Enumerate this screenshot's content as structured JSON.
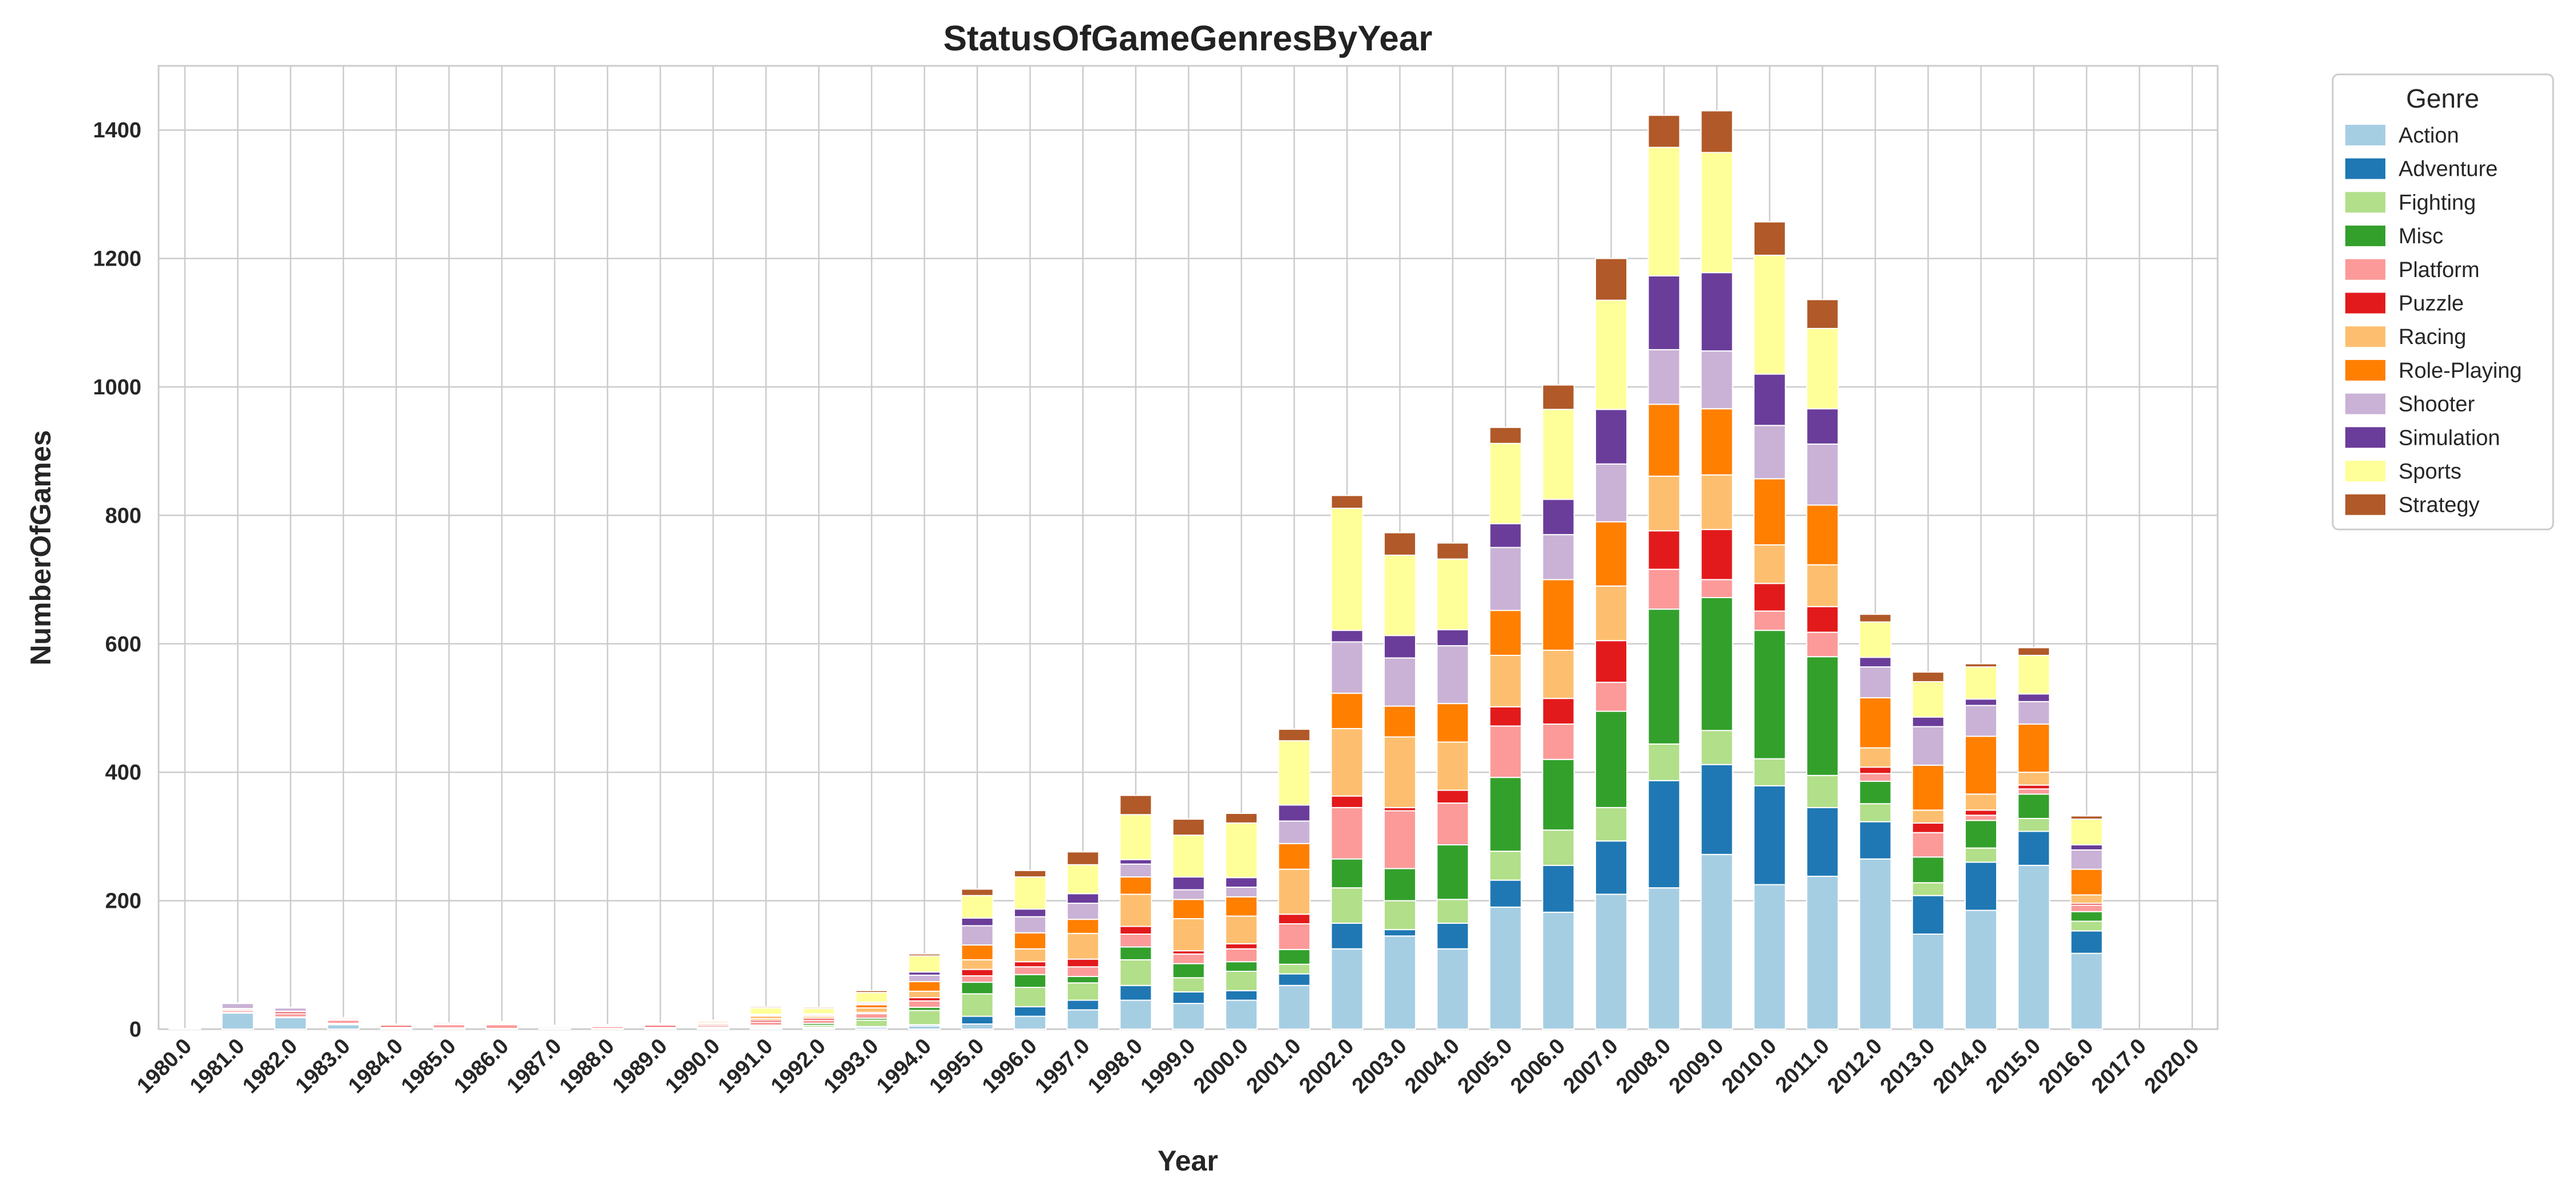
{
  "chart_data": {
    "type": "bar",
    "stacked": true,
    "title": "StatusOfGameGenresByYear",
    "xlabel": "Year",
    "ylabel": "NumberOfGames",
    "ylim": [
      0,
      1500
    ],
    "yticks": [
      0,
      200,
      400,
      600,
      800,
      1000,
      1200,
      1400
    ],
    "grid": true,
    "legend": {
      "title": "Genre",
      "placement": "outside-top-right"
    },
    "categories": [
      "1980.0",
      "1981.0",
      "1982.0",
      "1983.0",
      "1984.0",
      "1985.0",
      "1986.0",
      "1987.0",
      "1988.0",
      "1989.0",
      "1990.0",
      "1991.0",
      "1992.0",
      "1993.0",
      "1994.0",
      "1995.0",
      "1996.0",
      "1997.0",
      "1998.0",
      "1999.0",
      "2000.0",
      "2001.0",
      "2002.0",
      "2003.0",
      "2004.0",
      "2005.0",
      "2006.0",
      "2007.0",
      "2008.0",
      "2009.0",
      "2010.0",
      "2011.0",
      "2012.0",
      "2013.0",
      "2014.0",
      "2015.0",
      "2016.0",
      "2017.0",
      "2020.0"
    ],
    "series": [
      {
        "name": "Action",
        "color": "#a6cee3",
        "values": [
          0,
          25,
          18,
          7,
          1,
          2,
          1,
          1,
          1,
          1,
          1,
          2,
          2,
          3,
          5,
          8,
          20,
          30,
          45,
          40,
          45,
          68,
          125,
          145,
          125,
          190,
          182,
          210,
          220,
          272,
          225,
          238,
          265,
          148,
          185,
          255,
          118,
          0,
          0
        ]
      },
      {
        "name": "Adventure",
        "color": "#1f78b4",
        "values": [
          0,
          0,
          0,
          1,
          0,
          0,
          0,
          0,
          0,
          0,
          0,
          1,
          1,
          1,
          2,
          12,
          15,
          15,
          23,
          18,
          15,
          18,
          40,
          10,
          40,
          42,
          73,
          83,
          167,
          140,
          154,
          107,
          58,
          60,
          75,
          53,
          35,
          0,
          0
        ]
      },
      {
        "name": "Fighting",
        "color": "#b2df8a",
        "values": [
          0,
          0,
          0,
          0,
          0,
          0,
          0,
          0,
          0,
          0,
          1,
          2,
          3,
          10,
          22,
          35,
          30,
          27,
          40,
          22,
          30,
          15,
          55,
          45,
          37,
          45,
          55,
          52,
          57,
          53,
          42,
          50,
          28,
          20,
          22,
          20,
          15,
          0,
          0
        ]
      },
      {
        "name": "Misc",
        "color": "#33a02c",
        "values": [
          0,
          1,
          1,
          1,
          1,
          0,
          0,
          0,
          0,
          0,
          1,
          1,
          3,
          3,
          5,
          18,
          20,
          10,
          20,
          22,
          15,
          23,
          45,
          50,
          85,
          115,
          110,
          150,
          210,
          207,
          200,
          185,
          35,
          40,
          43,
          38,
          15,
          0,
          0
        ]
      },
      {
        "name": "Platform",
        "color": "#fb9a99",
        "values": [
          1,
          3,
          5,
          5,
          1,
          5,
          6,
          2,
          3,
          2,
          3,
          5,
          5,
          7,
          10,
          10,
          12,
          15,
          20,
          15,
          20,
          40,
          80,
          90,
          65,
          80,
          55,
          45,
          62,
          28,
          30,
          38,
          12,
          38,
          8,
          8,
          10,
          0,
          0
        ]
      },
      {
        "name": "Puzzle",
        "color": "#e31a1c",
        "values": [
          0,
          2,
          3,
          1,
          3,
          1,
          0,
          0,
          0,
          3,
          2,
          3,
          3,
          2,
          5,
          10,
          8,
          12,
          12,
          5,
          8,
          15,
          18,
          5,
          20,
          30,
          40,
          65,
          60,
          78,
          43,
          40,
          10,
          15,
          8,
          6,
          3,
          0,
          0
        ]
      },
      {
        "name": "Racing",
        "color": "#fdbf6f",
        "values": [
          0,
          1,
          1,
          1,
          0,
          0,
          1,
          0,
          1,
          0,
          2,
          3,
          3,
          7,
          10,
          15,
          20,
          40,
          50,
          50,
          43,
          70,
          105,
          110,
          75,
          80,
          75,
          85,
          85,
          85,
          60,
          65,
          30,
          20,
          25,
          20,
          13,
          0,
          0
        ]
      },
      {
        "name": "Role-Playing",
        "color": "#ff7f00",
        "values": [
          0,
          0,
          0,
          0,
          0,
          0,
          1,
          1,
          1,
          1,
          2,
          3,
          2,
          5,
          15,
          23,
          25,
          22,
          27,
          30,
          30,
          40,
          55,
          48,
          60,
          70,
          110,
          100,
          112,
          103,
          103,
          93,
          78,
          70,
          90,
          75,
          40,
          0,
          0
        ]
      },
      {
        "name": "Shooter",
        "color": "#cab2d6",
        "values": [
          0,
          8,
          5,
          2,
          1,
          2,
          1,
          1,
          0,
          1,
          1,
          2,
          1,
          2,
          10,
          30,
          25,
          25,
          20,
          15,
          15,
          35,
          80,
          75,
          90,
          98,
          70,
          90,
          85,
          90,
          83,
          95,
          48,
          60,
          48,
          35,
          30,
          0,
          0
        ]
      },
      {
        "name": "Simulation",
        "color": "#6a3d9a",
        "values": [
          0,
          0,
          0,
          0,
          0,
          0,
          0,
          0,
          0,
          0,
          0,
          1,
          1,
          2,
          5,
          12,
          12,
          15,
          7,
          20,
          15,
          25,
          18,
          35,
          25,
          37,
          55,
          85,
          115,
          122,
          80,
          55,
          15,
          15,
          10,
          12,
          8,
          0,
          0
        ]
      },
      {
        "name": "Sports",
        "color": "#ffff99",
        "values": [
          0,
          1,
          1,
          0,
          1,
          0,
          2,
          1,
          1,
          1,
          1,
          10,
          8,
          15,
          25,
          35,
          50,
          45,
          70,
          65,
          85,
          100,
          190,
          125,
          110,
          125,
          140,
          170,
          200,
          187,
          185,
          125,
          55,
          55,
          50,
          60,
          40,
          0,
          0
        ]
      },
      {
        "name": "Strategy",
        "color": "#b15928",
        "values": [
          0,
          0,
          0,
          0,
          0,
          0,
          0,
          0,
          0,
          0,
          0,
          2,
          2,
          3,
          3,
          10,
          10,
          20,
          30,
          25,
          15,
          18,
          20,
          35,
          25,
          25,
          38,
          65,
          50,
          65,
          52,
          45,
          12,
          15,
          5,
          12,
          5,
          0,
          0
        ]
      }
    ]
  }
}
